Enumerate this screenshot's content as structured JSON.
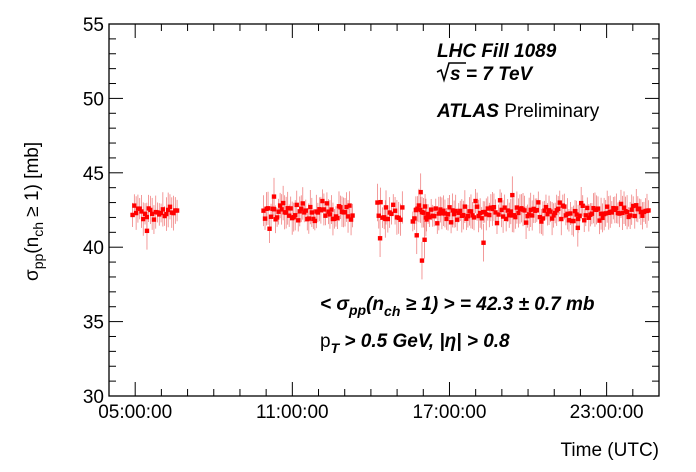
{
  "chart_data": {
    "type": "scatter",
    "xlabel": "Time (UTC)",
    "ylabel": {
      "main": "σ",
      "main_sub": "pp",
      "rest_open": "(n",
      "rest_sub": "ch",
      "rest_close": " ≥ 1) [mb]"
    },
    "ylim": [
      30,
      55
    ],
    "y_ticks": [
      30,
      35,
      40,
      45,
      50,
      55
    ],
    "x_range_hours": [
      4.0,
      25.0
    ],
    "x_ticks": [
      {
        "hour": 5,
        "label": "05:00:00"
      },
      {
        "hour": 11,
        "label": "11:00:00"
      },
      {
        "hour": 17,
        "label": "17:00:00"
      },
      {
        "hour": 23,
        "label": "23:00:00"
      }
    ],
    "grid": false,
    "color": "#ff0000",
    "annotations": {
      "fill_label": "LHC Fill 1089",
      "energy_rest": "s = 7 TeV",
      "atlas": "ATLAS",
      "preliminary": " Preliminary",
      "mean_open": "< σ",
      "mean_sub1": "pp",
      "mean_mid1": "(n",
      "mean_sub2": "ch",
      "mean_close": " ≥ 1) > = 42.3 ± 0.7 mb",
      "cut_p": "p",
      "cut_sub": "T",
      "cut_rest": " > 0.5 GeV, |η| > 0.8"
    },
    "segments": [
      {
        "start_hour": 4.9,
        "end_hour": 6.6,
        "count": 26
      },
      {
        "start_hour": 9.9,
        "end_hour": 13.3,
        "count": 60
      },
      {
        "start_hour": 14.3,
        "end_hour": 15.2,
        "count": 14
      },
      {
        "start_hour": 15.6,
        "end_hour": 24.6,
        "count": 155
      }
    ],
    "series_mean": 42.3,
    "series_spread": 0.5,
    "error_bar": 0.9,
    "outliers": [
      {
        "hour": 5.45,
        "y": 41.1
      },
      {
        "hour": 14.25,
        "y": 43.0
      },
      {
        "hour": 14.35,
        "y": 40.6
      },
      {
        "hour": 14.55,
        "y": 41.9
      },
      {
        "hour": 15.75,
        "y": 40.8
      },
      {
        "hour": 15.95,
        "y": 39.1
      },
      {
        "hour": 16.05,
        "y": 40.5
      },
      {
        "hour": 15.9,
        "y": 43.7
      },
      {
        "hour": 16.1,
        "y": 42.0
      },
      {
        "hour": 18.3,
        "y": 40.3
      },
      {
        "hour": 10.3,
        "y": 43.4
      },
      {
        "hour": 19.4,
        "y": 43.5
      },
      {
        "hour": 21.9,
        "y": 41.3
      }
    ]
  }
}
